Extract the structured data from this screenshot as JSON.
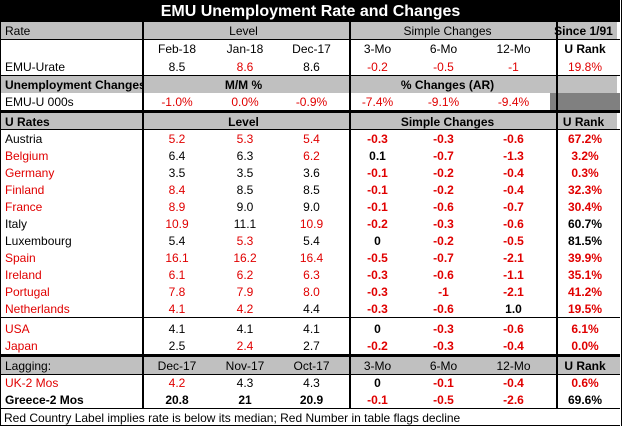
{
  "title": "EMU Unemployment Rate and Changes",
  "section1": {
    "header": [
      "Rate",
      "Level",
      "Simple Changes",
      "Since 1/91"
    ],
    "subheader": [
      "",
      "Feb-18",
      "Jan-18",
      "Dec-17",
      "3-Mo",
      "6-Mo",
      "12-Mo",
      "U Rank"
    ],
    "row": [
      "EMU-Urate",
      "8.5",
      "8.6",
      "8.6",
      "-0.2",
      "-0.5",
      "-1",
      "19.8%"
    ],
    "changes_header": [
      "Unemployment Changes",
      "M/M %",
      "% Changes (AR)"
    ],
    "changes_row": [
      "EMU-U 000s",
      "-1.0%",
      "0.0%",
      "-0.9%",
      "-7.4%",
      "-9.1%",
      "-9.4%"
    ]
  },
  "section2": {
    "header": [
      "U Rates",
      "Level",
      "Simple Changes",
      "U Rank"
    ],
    "rows": [
      {
        "name": "Austria",
        "nr": false,
        "v": [
          "5.2",
          "5.3",
          "5.4",
          "-0.3",
          "-0.3",
          "-0.6",
          "67.2%"
        ],
        "r": [
          1,
          1,
          1,
          1,
          1,
          1,
          1
        ]
      },
      {
        "name": "Belgium",
        "nr": true,
        "v": [
          "6.4",
          "6.3",
          "6.2",
          "0.1",
          "-0.7",
          "-1.3",
          "3.2%"
        ],
        "r": [
          0,
          0,
          1,
          0,
          1,
          1,
          1
        ]
      },
      {
        "name": "Germany",
        "nr": true,
        "v": [
          "3.5",
          "3.5",
          "3.6",
          "-0.1",
          "-0.2",
          "-0.4",
          "0.3%"
        ],
        "r": [
          0,
          0,
          0,
          1,
          1,
          1,
          1
        ]
      },
      {
        "name": "Finland",
        "nr": true,
        "v": [
          "8.4",
          "8.5",
          "8.5",
          "-0.1",
          "-0.2",
          "-0.4",
          "32.3%"
        ],
        "r": [
          1,
          0,
          0,
          1,
          1,
          1,
          1
        ]
      },
      {
        "name": "France",
        "nr": true,
        "v": [
          "8.9",
          "9.0",
          "9.0",
          "-0.1",
          "-0.6",
          "-0.7",
          "30.4%"
        ],
        "r": [
          1,
          0,
          0,
          1,
          1,
          1,
          1
        ]
      },
      {
        "name": "Italy",
        "nr": false,
        "v": [
          "10.9",
          "11.1",
          "10.9",
          "-0.2",
          "-0.3",
          "-0.6",
          "60.7%"
        ],
        "r": [
          1,
          0,
          1,
          1,
          1,
          1,
          0
        ]
      },
      {
        "name": "Luxembourg",
        "nr": false,
        "v": [
          "5.4",
          "5.3",
          "5.4",
          "0",
          "-0.2",
          "-0.5",
          "81.5%"
        ],
        "r": [
          0,
          1,
          0,
          0,
          1,
          1,
          0
        ]
      },
      {
        "name": "Spain",
        "nr": true,
        "v": [
          "16.1",
          "16.2",
          "16.4",
          "-0.5",
          "-0.7",
          "-2.1",
          "39.9%"
        ],
        "r": [
          1,
          1,
          1,
          1,
          1,
          1,
          1
        ]
      },
      {
        "name": "Ireland",
        "nr": true,
        "v": [
          "6.1",
          "6.2",
          "6.3",
          "-0.3",
          "-0.6",
          "-1.1",
          "35.1%"
        ],
        "r": [
          1,
          1,
          1,
          1,
          1,
          1,
          1
        ]
      },
      {
        "name": "Portugal",
        "nr": true,
        "v": [
          "7.8",
          "7.9",
          "8.0",
          "-0.3",
          "-1",
          "-2.1",
          "41.2%"
        ],
        "r": [
          1,
          1,
          1,
          1,
          1,
          1,
          1
        ]
      },
      {
        "name": "Netherlands",
        "nr": true,
        "v": [
          "4.1",
          "4.2",
          "4.4",
          "-0.3",
          "-0.6",
          "1.0",
          "19.5%"
        ],
        "r": [
          1,
          1,
          0,
          1,
          1,
          0,
          1
        ]
      }
    ],
    "other_rows": [
      {
        "name": "USA",
        "nr": true,
        "v": [
          "4.1",
          "4.1",
          "4.1",
          "0",
          "-0.3",
          "-0.6",
          "6.1%"
        ],
        "r": [
          0,
          0,
          0,
          0,
          1,
          1,
          1
        ]
      },
      {
        "name": "Japan",
        "nr": true,
        "v": [
          "2.5",
          "2.4",
          "2.7",
          "-0.2",
          "-0.3",
          "-0.4",
          "0.0%"
        ],
        "r": [
          0,
          1,
          0,
          1,
          1,
          1,
          1
        ]
      }
    ]
  },
  "section3": {
    "header": [
      "Lagging:",
      "Dec-17",
      "Nov-17",
      "Oct-17",
      "3-Mo",
      "6-Mo",
      "12-Mo",
      "U Rank"
    ],
    "rows": [
      {
        "name": "UK-2 Mos",
        "nr": true,
        "v": [
          "4.2",
          "4.3",
          "4.3",
          "0",
          "-0.1",
          "-0.4",
          "0.6%"
        ],
        "r": [
          1,
          0,
          0,
          0,
          1,
          1,
          1
        ]
      },
      {
        "name": "Greece-2 Mos",
        "nr": false,
        "bold": true,
        "v": [
          "20.8",
          "21",
          "20.9",
          "-0.1",
          "-0.5",
          "-2.6",
          "69.6%"
        ],
        "r": [
          0,
          0,
          0,
          1,
          1,
          1,
          0
        ]
      }
    ]
  },
  "footer": "Red Country Label implies rate is below its median; Red Number in table flags decline"
}
